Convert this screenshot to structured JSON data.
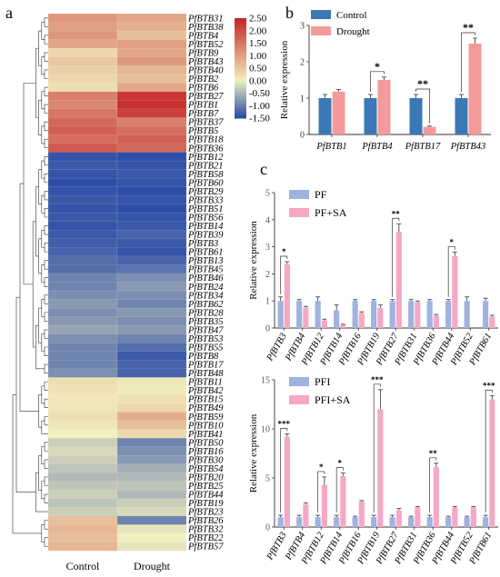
{
  "panels": {
    "a": "a",
    "b": "b",
    "c": "c"
  },
  "colors": {
    "blue": "#3a78b6",
    "pink": "#f59a9a",
    "lightblue": "#9fb2e0",
    "lightpink": "#f5a8c3",
    "heat_low": "#2d4ea8",
    "heat_mid": "#f2efbe",
    "heat_high": "#c62828"
  },
  "chart_data": [
    {
      "type": "heatmap",
      "panel": "a",
      "columns": [
        "Control",
        "Drought"
      ],
      "rows": [
        "PfBTB31",
        "PfBTB38",
        "PfBTB4",
        "PfBTB52",
        "PfBTB9",
        "PfBTB43",
        "PfBTB40",
        "PfBTB2",
        "PfBTB6",
        "PfBTB27",
        "PfBTB1",
        "PfBTB7",
        "PfBTB37",
        "PfBTB5",
        "PfBTB18",
        "PfBTB36",
        "PfBTB12",
        "PfBTB21",
        "PfBTB58",
        "PfBTB60",
        "PfBTB29",
        "PfBTB33",
        "PfBTB51",
        "PfBTB56",
        "PfBTB14",
        "PfBTB39",
        "PfBTB3",
        "PfBTB61",
        "PfBTB13",
        "PfBTB45",
        "PfBTB46",
        "PfBTB24",
        "PfBTB34",
        "PfBTB62",
        "PfBTB28",
        "PfBTB35",
        "PfBTB47",
        "PfBTB53",
        "PfBTB55",
        "PfBTB8",
        "PfBTB17",
        "PfBTB48",
        "PfBTB11",
        "PfBTB42",
        "PfBTB15",
        "PfBTB49",
        "PfBTB59",
        "PfBTB10",
        "PfBTB41",
        "PfBTB50",
        "PfBTB16",
        "PfBTB30",
        "PfBTB54",
        "PfBTB20",
        "PfBTB25",
        "PfBTB44",
        "PfBTB19",
        "PfBTB23",
        "PfBTB26",
        "PfBTB32",
        "PfBTB22",
        "PfBTB57"
      ],
      "values": [
        [
          1.1,
          0.9
        ],
        [
          1.0,
          0.8
        ],
        [
          1.1,
          0.6
        ],
        [
          0.9,
          1.0
        ],
        [
          0.3,
          0.9
        ],
        [
          0.5,
          1.1
        ],
        [
          0.4,
          0.7
        ],
        [
          0.3,
          0.6
        ],
        [
          0.2,
          0.9
        ],
        [
          1.4,
          2.3
        ],
        [
          1.3,
          2.4
        ],
        [
          1.5,
          2.2
        ],
        [
          1.7,
          1.4
        ],
        [
          1.8,
          1.6
        ],
        [
          1.6,
          1.8
        ],
        [
          1.9,
          1.7
        ],
        [
          -1.45,
          -1.5
        ],
        [
          -1.4,
          -1.45
        ],
        [
          -1.45,
          -1.4
        ],
        [
          -1.5,
          -1.45
        ],
        [
          -1.45,
          -1.5
        ],
        [
          -1.4,
          -1.45
        ],
        [
          -1.45,
          -1.5
        ],
        [
          -1.4,
          -1.45
        ],
        [
          -1.45,
          -1.4
        ],
        [
          -1.4,
          -1.3
        ],
        [
          -1.35,
          -1.4
        ],
        [
          -1.3,
          -1.45
        ],
        [
          -1.2,
          -1.3
        ],
        [
          -1.2,
          -1.15
        ],
        [
          -1.0,
          -0.9
        ],
        [
          -1.0,
          -0.8
        ],
        [
          -0.9,
          -0.9
        ],
        [
          -0.8,
          -1.0
        ],
        [
          -0.9,
          -0.8
        ],
        [
          -0.8,
          -0.9
        ],
        [
          -0.7,
          -0.8
        ],
        [
          -0.9,
          -1.0
        ],
        [
          -1.0,
          -1.2
        ],
        [
          -1.0,
          -1.4
        ],
        [
          -1.0,
          -1.3
        ],
        [
          -0.9,
          -1.3
        ],
        [
          0.2,
          0.1
        ],
        [
          0.15,
          0.05
        ],
        [
          0.1,
          0.2
        ],
        [
          0.1,
          0.3
        ],
        [
          0.2,
          0.8
        ],
        [
          0.1,
          0.6
        ],
        [
          0.0,
          0.3
        ],
        [
          -0.3,
          -1.0
        ],
        [
          -0.2,
          -0.9
        ],
        [
          -0.3,
          -0.8
        ],
        [
          -0.4,
          -0.6
        ],
        [
          -0.5,
          -0.5
        ],
        [
          -0.4,
          -0.4
        ],
        [
          -0.3,
          -0.5
        ],
        [
          -0.4,
          -0.3
        ],
        [
          -0.3,
          -0.2
        ],
        [
          0.6,
          -1.0
        ],
        [
          0.7,
          -0.1
        ],
        [
          0.6,
          0.0
        ],
        [
          0.7,
          -0.1
        ]
      ],
      "colorbar": {
        "min": -1.5,
        "max": 2.5,
        "ticks": [
          "2.50",
          "2.00",
          "1.50",
          "1.00",
          "0.50",
          "0.00",
          "-0.50",
          "-1.00",
          "-1.50"
        ]
      }
    },
    {
      "type": "bar",
      "panel": "b",
      "categories": [
        "PfBTB1",
        "PfBTB4",
        "PfBTB17",
        "PfBTB43"
      ],
      "series": [
        {
          "name": "Control",
          "values": [
            1.0,
            1.0,
            1.0,
            1.0
          ],
          "errors": [
            0.1,
            0.1,
            0.1,
            0.1
          ]
        },
        {
          "name": "Drought",
          "values": [
            1.18,
            1.5,
            0.21,
            2.5
          ],
          "errors": [
            0.06,
            0.08,
            0.02,
            0.15
          ]
        }
      ],
      "significance": [
        "",
        "*",
        "**",
        "**"
      ],
      "ylabel": "Relative expression",
      "ylim": [
        0,
        3
      ],
      "yticks": [
        "0",
        "1",
        "2",
        "3"
      ],
      "legend": "top-left"
    },
    {
      "type": "bar",
      "panel": "c",
      "categories": [
        "PfBTB3",
        "PfBTB4",
        "PfBTB12",
        "PfBTB14",
        "PfBTB16",
        "PfBTB19",
        "PfBTB27",
        "PfBTB31",
        "PfBTB36",
        "PfBTB44",
        "PfBTB52",
        "PfBTB61"
      ],
      "series": [
        {
          "name": "PF",
          "values": [
            1.0,
            1.0,
            1.0,
            0.65,
            1.0,
            1.0,
            1.0,
            1.0,
            1.0,
            1.0,
            1.0,
            1.0
          ],
          "errors": [
            0.15,
            0.05,
            0.15,
            0.2,
            0.05,
            0.05,
            0.05,
            0.05,
            0.05,
            0.05,
            0.15,
            0.1
          ]
        },
        {
          "name": "PF+SA",
          "values": [
            2.35,
            0.75,
            0.28,
            0.12,
            0.55,
            0.75,
            3.55,
            0.95,
            0.45,
            2.65,
            0.0,
            0.42
          ],
          "errors": [
            0.1,
            0.05,
            0.05,
            0.02,
            0.05,
            0.1,
            0.3,
            0.05,
            0.05,
            0.15,
            0,
            0.05
          ]
        }
      ],
      "significance": [
        "*",
        "",
        "",
        "",
        "",
        "",
        "**",
        "",
        "",
        "*",
        "",
        ""
      ],
      "ylabel": "Relative expression",
      "ylim": [
        0,
        5
      ],
      "yticks": [
        "0",
        "1",
        "2",
        "3",
        "4",
        "5"
      ],
      "legend": "top-left"
    },
    {
      "type": "bar",
      "panel": "c",
      "categories": [
        "PfBTB3",
        "PfBTB4",
        "PfBTB12",
        "PfBTB14",
        "PfBTB16",
        "PfBTB19",
        "PfBTB27",
        "PfBTB31",
        "PfBTB36",
        "PfBTB44",
        "PfBTB52",
        "PfBTB61"
      ],
      "series": [
        {
          "name": "PFI",
          "values": [
            1.0,
            1.0,
            1.0,
            1.0,
            1.0,
            1.0,
            1.0,
            1.0,
            1.0,
            1.0,
            1.0,
            1.0
          ],
          "errors": [
            0.2,
            0.2,
            0.2,
            0.2,
            0.1,
            0.2,
            0.2,
            0.1,
            0.2,
            0.1,
            0.1,
            0.2
          ]
        },
        {
          "name": "PFI+SA",
          "values": [
            9.2,
            2.3,
            4.3,
            5.2,
            2.6,
            12.0,
            1.7,
            2.0,
            6.1,
            2.0,
            2.0,
            13.0
          ],
          "errors": [
            0.3,
            0.15,
            0.8,
            0.3,
            0.1,
            2.0,
            0.2,
            0.1,
            0.4,
            0.1,
            0.1,
            0.4
          ]
        }
      ],
      "significance": [
        "***",
        "",
        "*",
        "*",
        "",
        "***",
        "",
        "",
        "**",
        "",
        "",
        "***"
      ],
      "ylabel": "Relative expression",
      "ylim": [
        0,
        15
      ],
      "yticks": [
        "0",
        "5",
        "10",
        "15"
      ],
      "legend": "top-left"
    }
  ]
}
